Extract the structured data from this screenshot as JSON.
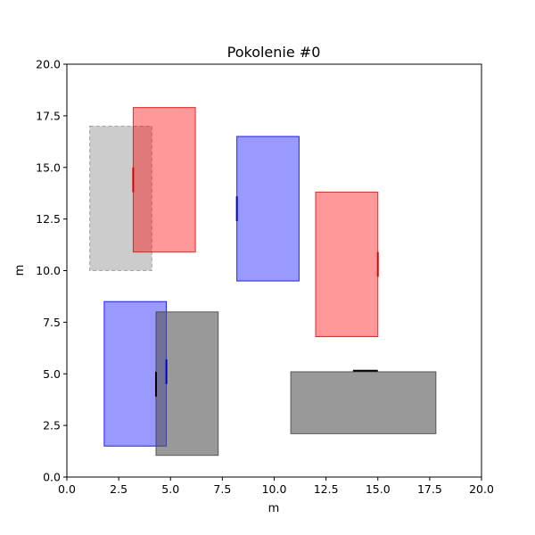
{
  "chart_data": {
    "type": "scatter",
    "title": "Pokolenie #0",
    "xlabel": "m",
    "ylabel": "m",
    "xlim": [
      0,
      20
    ],
    "ylim": [
      0,
      20
    ],
    "xticks": [
      "0.0",
      "2.5",
      "5.0",
      "7.5",
      "10.0",
      "12.5",
      "15.0",
      "17.5",
      "20.0"
    ],
    "yticks": [
      "0.0",
      "2.5",
      "5.0",
      "7.5",
      "10.0",
      "12.5",
      "15.0",
      "17.5",
      "20.0"
    ],
    "grid": false,
    "rectangles": [
      {
        "kind": "obstacle",
        "x0": 1.1,
        "y0": 10.0,
        "x1": 4.1,
        "y1": 17.0,
        "color": "#bbbbbb",
        "opacity": 0.75,
        "edge": "#999999",
        "dashed": true,
        "door": null
      },
      {
        "kind": "red",
        "x0": 3.2,
        "y0": 10.9,
        "x1": 6.2,
        "y1": 17.9,
        "color": "#ff0000",
        "opacity": 0.4,
        "edge": "#ff0000",
        "dashed": false,
        "door": {
          "x0": 3.2,
          "y0": 13.8,
          "x1": 3.2,
          "y1": 15.0,
          "color": "#dd0000"
        }
      },
      {
        "kind": "blue",
        "x0": 8.2,
        "y0": 9.5,
        "x1": 11.2,
        "y1": 16.5,
        "color": "#0000ff",
        "opacity": 0.4,
        "edge": "#0000ff",
        "dashed": false,
        "door": {
          "x0": 8.2,
          "y0": 12.4,
          "x1": 8.2,
          "y1": 13.6,
          "color": "#0000cc"
        }
      },
      {
        "kind": "red",
        "x0": 12.0,
        "y0": 6.8,
        "x1": 15.0,
        "y1": 13.8,
        "color": "#ff0000",
        "opacity": 0.4,
        "edge": "#ff0000",
        "dashed": false,
        "door": {
          "x0": 15.0,
          "y0": 9.7,
          "x1": 15.0,
          "y1": 10.9,
          "color": "#dd0000"
        }
      },
      {
        "kind": "blue",
        "x0": 1.8,
        "y0": 1.5,
        "x1": 4.8,
        "y1": 8.5,
        "color": "#0000ff",
        "opacity": 0.4,
        "edge": "#0000ff",
        "dashed": false,
        "door": {
          "x0": 4.8,
          "y0": 4.5,
          "x1": 4.8,
          "y1": 5.7,
          "color": "#0000cc"
        }
      },
      {
        "kind": "gray",
        "x0": 4.3,
        "y0": 1.05,
        "x1": 7.3,
        "y1": 8.0,
        "color": "#555555",
        "opacity": 0.6,
        "edge": "#444444",
        "dashed": false,
        "door": {
          "x0": 4.3,
          "y0": 3.9,
          "x1": 4.3,
          "y1": 5.1,
          "color": "#000000"
        }
      },
      {
        "kind": "gray",
        "x0": 10.8,
        "y0": 2.1,
        "x1": 17.8,
        "y1": 5.1,
        "color": "#555555",
        "opacity": 0.6,
        "edge": "#444444",
        "dashed": false,
        "door": {
          "x0": 13.8,
          "y0": 5.15,
          "x1": 15.0,
          "y1": 5.15,
          "color": "#000000"
        }
      }
    ]
  }
}
